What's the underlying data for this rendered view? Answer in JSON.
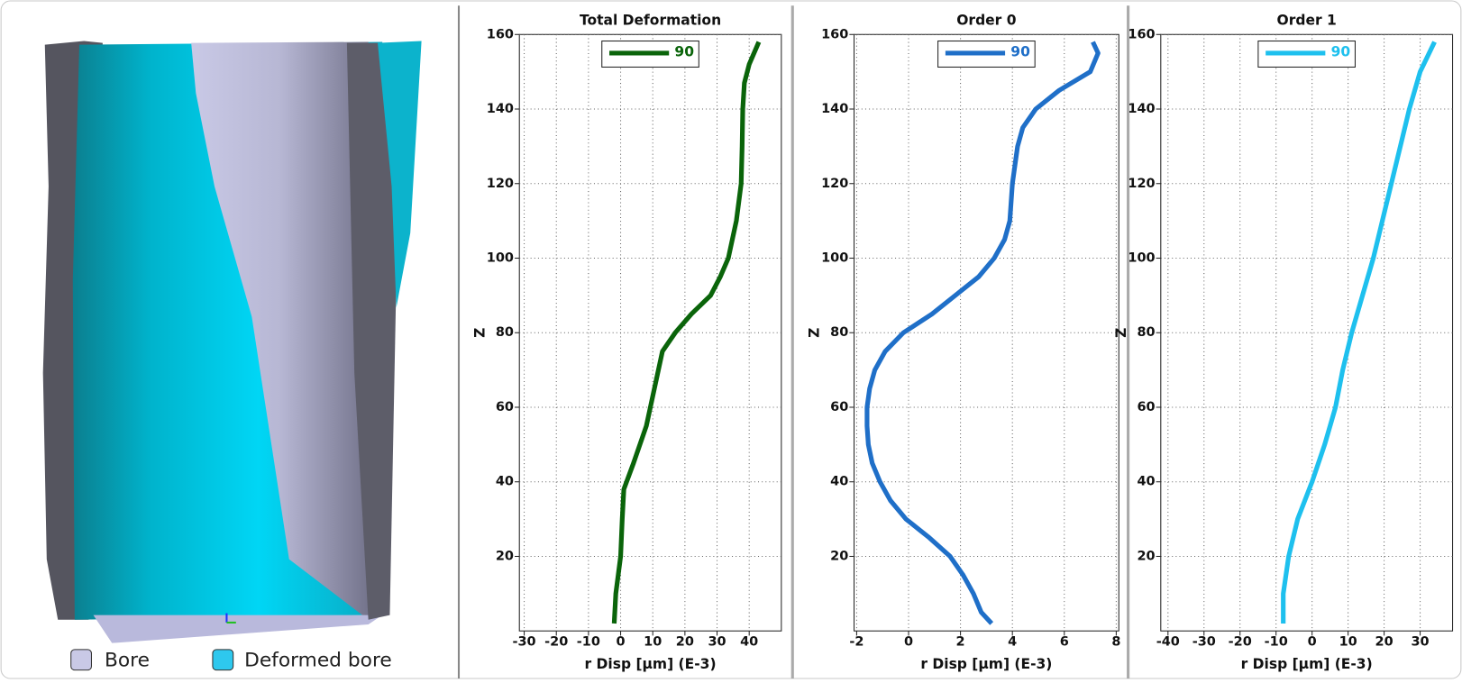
{
  "view": {
    "legend": [
      "Bore",
      "Deformed bore"
    ]
  },
  "chart_data": [
    {
      "type": "line",
      "title": "Total Deformation",
      "x_label": "r Disp [µm] (E-3)",
      "y_label": "Z",
      "xlim": [
        -31.5,
        50
      ],
      "xticks": [
        -30,
        -20,
        -10,
        0,
        10,
        20,
        30,
        40
      ],
      "ylim": [
        0,
        160
      ],
      "yticks": [
        20,
        40,
        60,
        80,
        100,
        120,
        140,
        160
      ],
      "grid": true,
      "legend": "top",
      "series": [
        {
          "name": "90",
          "color": "#0a640a",
          "z": [
            2,
            10,
            20,
            30,
            38,
            45,
            55,
            65,
            75,
            80,
            85,
            90,
            95,
            100,
            110,
            120,
            130,
            140,
            147,
            152,
            158
          ],
          "values": [
            -2,
            -1.5,
            0,
            0.5,
            1,
            4,
            8,
            10.5,
            13,
            17,
            22,
            28,
            31,
            33.5,
            36,
            37.5,
            37.8,
            38,
            38.5,
            40,
            43
          ]
        }
      ]
    },
    {
      "type": "line",
      "title": "Order 0",
      "x_label": "r Disp [µm] (E-3)",
      "y_label": "Z",
      "xlim": [
        -2.1,
        8.1
      ],
      "xticks": [
        -2,
        0,
        2,
        4,
        6,
        8
      ],
      "ylim": [
        0,
        160
      ],
      "yticks": [
        20,
        40,
        60,
        80,
        100,
        120,
        140,
        160
      ],
      "grid": true,
      "legend": "top",
      "series": [
        {
          "name": "90",
          "color": "#1f6fc8",
          "z": [
            2,
            5,
            10,
            15,
            20,
            25,
            30,
            35,
            40,
            45,
            50,
            55,
            60,
            65,
            70,
            75,
            80,
            85,
            90,
            95,
            100,
            105,
            110,
            120,
            130,
            135,
            140,
            145,
            150,
            155,
            158
          ],
          "values": [
            3.2,
            2.8,
            2.5,
            2.1,
            1.6,
            0.8,
            -0.1,
            -0.7,
            -1.1,
            -1.4,
            -1.55,
            -1.6,
            -1.6,
            -1.5,
            -1.3,
            -0.9,
            -0.2,
            0.9,
            1.8,
            2.7,
            3.3,
            3.7,
            3.9,
            4.0,
            4.2,
            4.4,
            4.9,
            5.8,
            7.0,
            7.3,
            7.1
          ]
        }
      ]
    },
    {
      "type": "line",
      "title": "Order 1",
      "x_label": "r Disp [µm] (E-3)",
      "y_label": "Z",
      "xlim": [
        -42,
        39
      ],
      "xticks": [
        -40,
        -30,
        -20,
        -10,
        0,
        10,
        20,
        30
      ],
      "ylim": [
        0,
        160
      ],
      "yticks": [
        20,
        40,
        60,
        80,
        100,
        120,
        140,
        160
      ],
      "grid": true,
      "legend": "top",
      "series": [
        {
          "name": "90",
          "color": "#1ec0ee",
          "z": [
            2,
            10,
            20,
            30,
            40,
            50,
            60,
            70,
            80,
            90,
            100,
            110,
            120,
            130,
            140,
            150,
            158
          ],
          "values": [
            -8,
            -8,
            -6.5,
            -4,
            0,
            3.5,
            6.5,
            8.5,
            11,
            14,
            17,
            19.5,
            22,
            24.5,
            27,
            30,
            34
          ]
        }
      ]
    }
  ]
}
